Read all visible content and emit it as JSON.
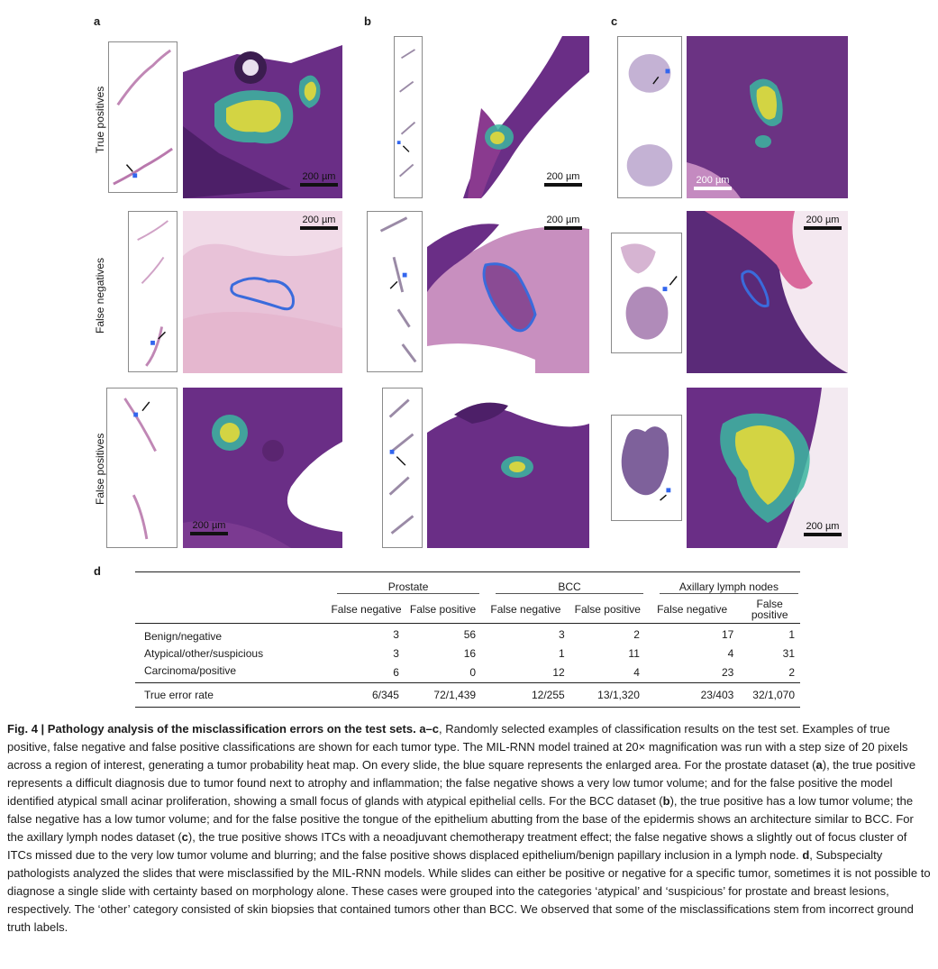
{
  "panels": {
    "a": "a",
    "b": "b",
    "c": "c",
    "d": "d"
  },
  "row_labels": [
    "True positives",
    "False negatives",
    "False positives"
  ],
  "scale_label": "200 µm",
  "colors": {
    "tissue_dark": "#5b2a7a",
    "tissue_pink": "#d9a6c7",
    "heat_core": "#e3d93a",
    "heat_edge": "#3bb6a0",
    "roi_blue": "#3a6bdc",
    "marker_blue": "#3366ee"
  },
  "table": {
    "groups": [
      "Prostate",
      "BCC",
      "Axillary lymph nodes"
    ],
    "subcols": [
      "False negative",
      "False positive",
      "False negative",
      "False positive",
      "False negative",
      "False positive"
    ],
    "rows": [
      {
        "label": "Benign/negative",
        "values": [
          "3",
          "56",
          "3",
          "2",
          "17",
          "1"
        ]
      },
      {
        "label": "Atypical/other/suspicious",
        "values": [
          "3",
          "16",
          "1",
          "11",
          "4",
          "31"
        ]
      },
      {
        "label": "Carcinoma/positive",
        "values": [
          "6",
          "0",
          "12",
          "4",
          "23",
          "2"
        ]
      }
    ],
    "total": {
      "label": "True error rate",
      "values": [
        "6/345",
        "72/1,439",
        "12/255",
        "13/1,320",
        "23/403",
        "32/1,070"
      ]
    }
  },
  "caption": {
    "title": "Fig. 4 | Pathology analysis of the misclassification errors on the test sets. a–c",
    "body": ", Randomly selected examples of classification results on the test set. Examples of true positive, false negative and false positive classifications are shown for each tumor type. The MIL-RNN model trained at 20× magnification was run with a step size of 20 pixels across a region of interest, generating a tumor probability heat map. On every slide, the blue square represents the enlarged area. For the prostate dataset (",
    "a": "a",
    "p2": "), the true positive represents a difficult diagnosis due to tumor found next to atrophy and inflammation; the false negative shows a very low tumor volume; and for the false positive the model identified atypical small acinar proliferation, showing a small focus of glands with atypical epithelial cells. For the BCC dataset (",
    "b": "b",
    "p3": "), the true positive has a low tumor volume; the false negative has a low tumor volume; and for the false positive the tongue of the epithelium abutting from the base of the epidermis shows an architecture similar to BCC. For the axillary lymph nodes dataset (",
    "c": "c",
    "p4": "), the true positive shows ITCs with a neoadjuvant chemotherapy treatment effect; the false negative shows a slightly out of focus cluster of ITCs missed due to the very low tumor volume and blurring; and the false positive shows displaced epithelium/benign papillary inclusion in a lymph node. ",
    "d": "d",
    "p5": ", Subspecialty pathologists analyzed the slides that were misclassified by the MIL-RNN models. While slides can either be positive or negative for a specific tumor, sometimes it is not possible to diagnose a single slide with certainty based on morphology alone. These cases were grouped into the categories ‘atypical’ and ‘suspicious’ for prostate and breast lesions, respectively. The ‘other’ category consisted of skin biopsies that contained tumors other than BCC. We observed that some of the misclassifications stem from incorrect ground truth labels."
  }
}
